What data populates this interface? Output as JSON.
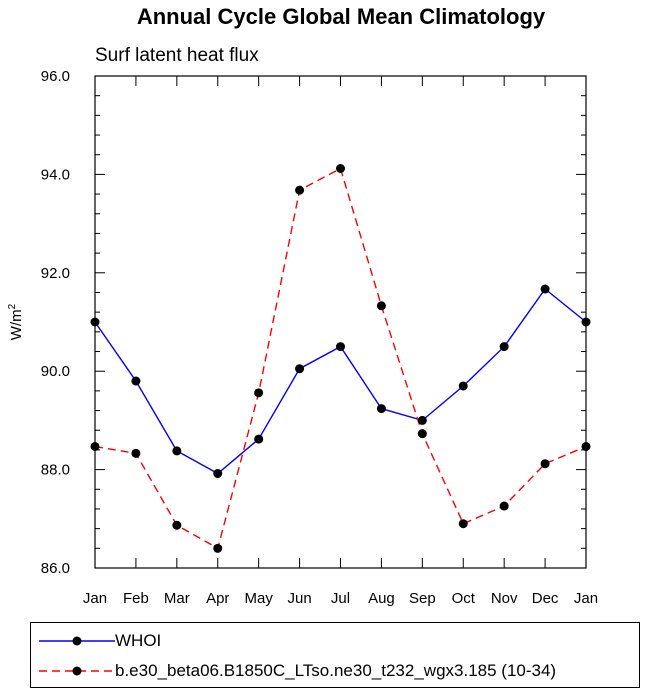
{
  "chart_data": {
    "type": "line",
    "title": "Annual Cycle Global Mean Climatology",
    "subtitle": "Surf latent heat flux",
    "ylabel": "W/m",
    "ylabel_sup": "2",
    "xlabel": "",
    "categories": [
      "Jan",
      "Feb",
      "Mar",
      "Apr",
      "May",
      "Jun",
      "Jul",
      "Aug",
      "Sep",
      "Oct",
      "Nov",
      "Dec",
      "Jan"
    ],
    "ylim": [
      86.0,
      96.0
    ],
    "yticks": [
      86.0,
      88.0,
      90.0,
      92.0,
      94.0,
      96.0
    ],
    "ytick_labels": [
      "86.0",
      "88.0",
      "90.0",
      "92.0",
      "94.0",
      "96.0"
    ],
    "legend_position": "bottom",
    "grid": false,
    "series": [
      {
        "name": "WHOI",
        "color": "#0000ff",
        "dash": "solid",
        "values": [
          91.0,
          89.8,
          88.38,
          87.92,
          88.62,
          90.05,
          90.5,
          89.24,
          89.0,
          89.7,
          90.5,
          91.67,
          91.0
        ]
      },
      {
        "name": "b.e30_beta06.B1850C_LTso.ne30_t232_wgx3.185 (10-34)",
        "color": "#ff0000",
        "dash": "dashed",
        "values": [
          88.47,
          88.33,
          86.87,
          86.4,
          89.56,
          93.68,
          94.12,
          91.33,
          88.73,
          86.9,
          87.26,
          88.12,
          88.47
        ]
      }
    ]
  }
}
